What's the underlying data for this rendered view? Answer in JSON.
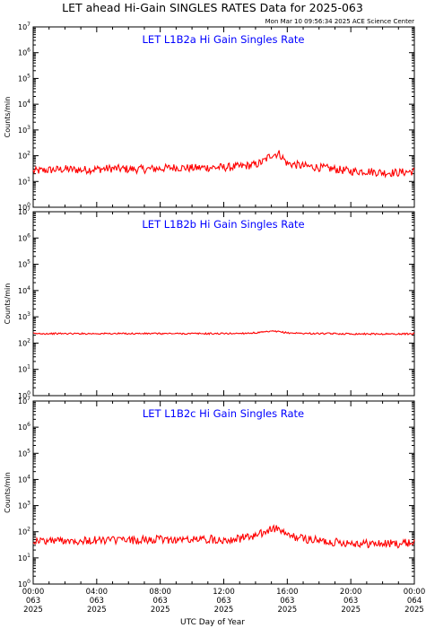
{
  "header": {
    "title": "LET ahead Hi-Gain SINGLES RATES Data for 2025-063",
    "timestamp": "Mon Mar 10 09:56:34 2025 ACE Science Center"
  },
  "x_axis": {
    "label": "UTC Day of Year",
    "ticks": [
      {
        "time": "00:00",
        "doy": "063",
        "year": "2025"
      },
      {
        "time": "04:00",
        "doy": "063",
        "year": "2025"
      },
      {
        "time": "08:00",
        "doy": "063",
        "year": "2025"
      },
      {
        "time": "12:00",
        "doy": "063",
        "year": "2025"
      },
      {
        "time": "16:00",
        "doy": "063",
        "year": "2025"
      },
      {
        "time": "20:00",
        "doy": "063",
        "year": "2025"
      },
      {
        "time": "00:00",
        "doy": "064",
        "year": "2025"
      }
    ]
  },
  "colors": {
    "series": "#ff0000",
    "panel_title": "#0000ff",
    "axes": "#000000"
  },
  "chart_data": [
    {
      "type": "line",
      "title": "LET L1B2a Hi Gain Singles Rate",
      "ylabel": "Counts/min",
      "yscale": "log",
      "ylim": [
        1,
        10000000
      ],
      "xlim_hours": [
        0,
        24
      ],
      "y_tick_exponents": [
        0,
        1,
        2,
        3,
        4,
        5,
        6,
        7
      ],
      "series": [
        {
          "x_hours": [
            0,
            1,
            2,
            3,
            4,
            5,
            6,
            7,
            8,
            9,
            10,
            11,
            12,
            13,
            14,
            14.5,
            15,
            15.5,
            16,
            17,
            18,
            19,
            20,
            21,
            22,
            23,
            24
          ],
          "values": [
            25,
            28,
            30,
            28,
            30,
            32,
            30,
            30,
            32,
            35,
            33,
            35,
            35,
            38,
            45,
            60,
            110,
            120,
            50,
            40,
            35,
            30,
            25,
            25,
            22,
            22,
            25
          ]
        }
      ]
    },
    {
      "type": "line",
      "title": "LET L1B2b Hi Gain Singles Rate",
      "ylabel": "Counts/min",
      "yscale": "log",
      "ylim": [
        1,
        10000000
      ],
      "xlim_hours": [
        0,
        24
      ],
      "y_tick_exponents": [
        0,
        1,
        2,
        3,
        4,
        5,
        6,
        7
      ],
      "series": [
        {
          "x_hours": [
            0,
            1,
            2,
            3,
            4,
            5,
            6,
            7,
            8,
            9,
            10,
            11,
            12,
            13,
            14,
            14.5,
            15,
            15.5,
            16,
            17,
            18,
            19,
            20,
            21,
            22,
            23,
            24
          ],
          "values": [
            230,
            230,
            230,
            230,
            230,
            230,
            230,
            230,
            230,
            230,
            230,
            230,
            230,
            235,
            245,
            260,
            280,
            270,
            245,
            235,
            230,
            228,
            225,
            225,
            222,
            222,
            225
          ]
        }
      ]
    },
    {
      "type": "line",
      "title": "LET L1B2c Hi Gain Singles Rate",
      "ylabel": "Counts/min",
      "yscale": "log",
      "ylim": [
        1,
        10000000
      ],
      "xlim_hours": [
        0,
        24
      ],
      "y_tick_exponents": [
        0,
        1,
        2,
        3,
        4,
        5,
        6,
        7
      ],
      "series": [
        {
          "x_hours": [
            0,
            1,
            2,
            3,
            4,
            5,
            6,
            7,
            8,
            9,
            10,
            11,
            12,
            13,
            14,
            14.5,
            15,
            15.5,
            16,
            17,
            18,
            19,
            20,
            21,
            22,
            23,
            24
          ],
          "values": [
            45,
            45,
            48,
            45,
            47,
            48,
            47,
            48,
            50,
            50,
            50,
            52,
            50,
            55,
            70,
            90,
            130,
            125,
            70,
            55,
            45,
            40,
            38,
            35,
            35,
            35,
            40
          ]
        }
      ]
    }
  ]
}
